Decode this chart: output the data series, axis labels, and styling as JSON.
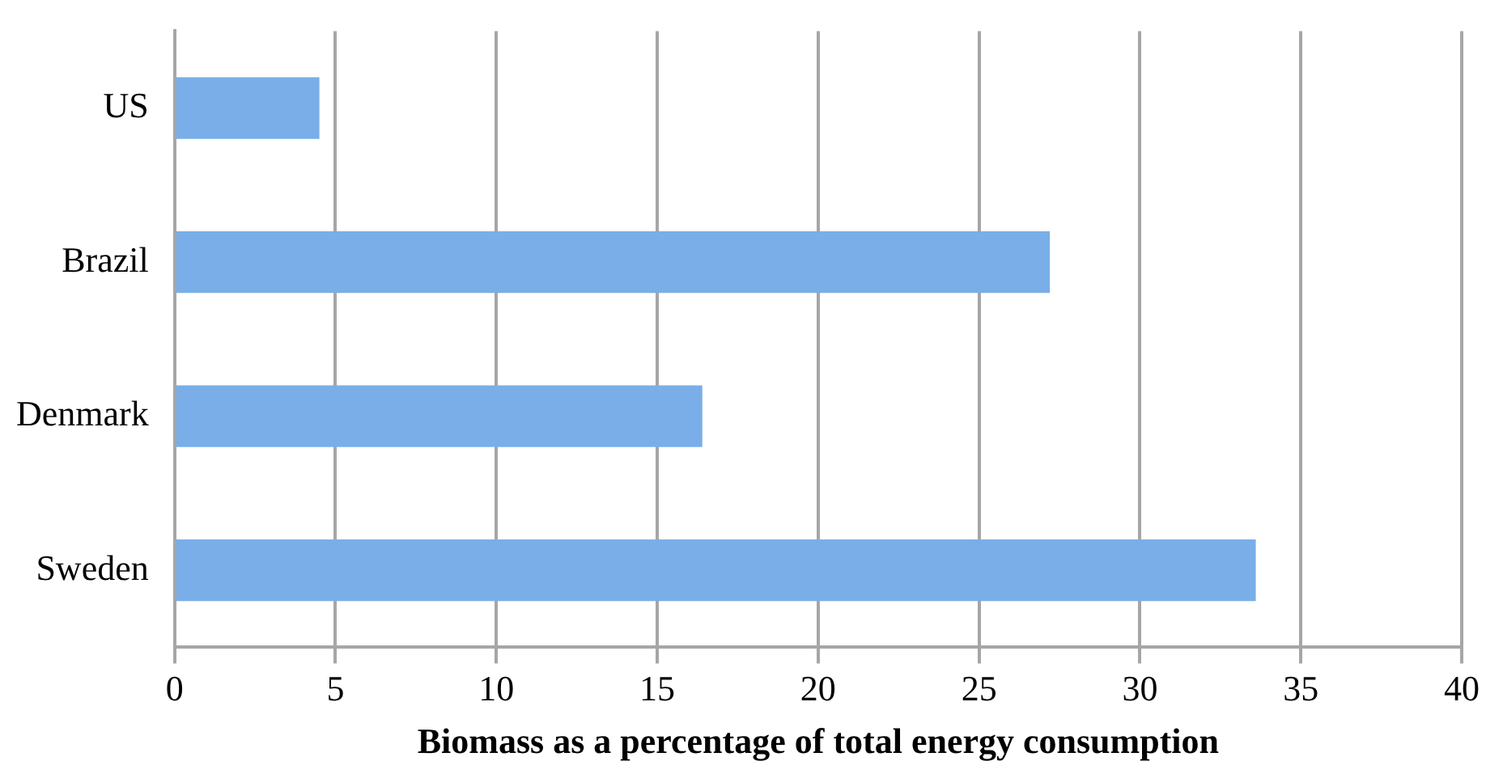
{
  "chart_data": {
    "type": "bar",
    "orientation": "horizontal",
    "xlabel": "Biomass as a percentage of total energy consumption",
    "categories": [
      "US",
      "Brazil",
      "Denmark",
      "Sweden"
    ],
    "values": [
      4.5,
      27.2,
      16.4,
      33.6
    ],
    "color": "#79aee8",
    "xlim": [
      0,
      40
    ],
    "xticks": [
      0,
      5,
      10,
      15,
      20,
      25,
      30,
      35,
      40
    ],
    "grid": "x",
    "legend": false
  }
}
